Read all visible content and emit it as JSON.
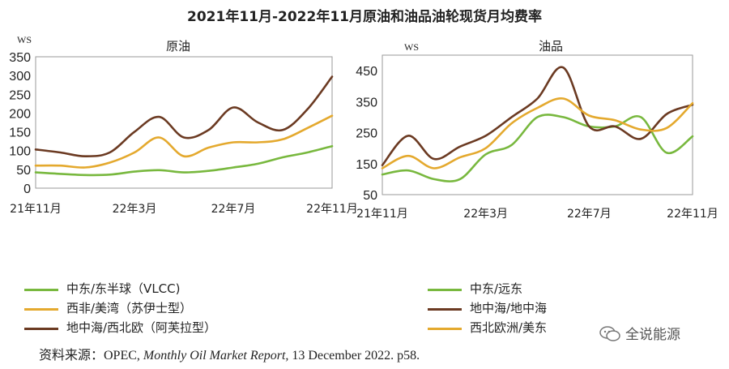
{
  "title": "2021年11月-2022年11月原油和油品油轮现货月均费率",
  "colors": {
    "green": "#78b83e",
    "yellow": "#e4a92e",
    "brown": "#6b3a22"
  },
  "legend_left": [
    {
      "label": "中东/东半球（VLCC)",
      "color": "#78b83e"
    },
    {
      "label": "西非/美湾（苏伊士型）",
      "color": "#e4a92e"
    },
    {
      "label": "地中海/西北欧（阿芙拉型）",
      "color": "#6b3a22"
    }
  ],
  "legend_right": [
    {
      "label": "中东/远东",
      "color": "#78b83e"
    },
    {
      "label": "地中海/地中海",
      "color": "#6b3a22"
    },
    {
      "label": "西北欧洲/美东",
      "color": "#e4a92e"
    }
  ],
  "source": {
    "prefix": "资料来源：OPEC, ",
    "italic": "Monthly Oil Market Report,",
    "suffix": " 13 December 2022. p58."
  },
  "brand": "全说能源",
  "chart_data": [
    {
      "type": "line",
      "subtitle": "原油",
      "unit_label": "WS",
      "x_tick_labels": [
        "21年11月",
        "22年3月",
        "22年7月",
        "22年11月"
      ],
      "x_tick_positions": [
        0,
        4,
        8,
        12
      ],
      "ylim": [
        0,
        350
      ],
      "yticks": [
        0,
        50,
        100,
        150,
        200,
        250,
        300,
        350
      ],
      "grid": false,
      "series": [
        {
          "name": "中东/东半球（VLCC)",
          "color": "#78b83e",
          "x": [
            0,
            1,
            2,
            3,
            4,
            5,
            6,
            7,
            8,
            9,
            10,
            11,
            12
          ],
          "values": [
            42,
            38,
            35,
            36,
            44,
            48,
            42,
            46,
            55,
            65,
            82,
            95,
            112
          ]
        },
        {
          "name": "西非/美湾（苏伊士型）",
          "color": "#e4a92e",
          "x": [
            0,
            1,
            2,
            3,
            4,
            5,
            6,
            7,
            8,
            9,
            10,
            11,
            12
          ],
          "values": [
            60,
            60,
            55,
            68,
            95,
            135,
            85,
            108,
            122,
            122,
            130,
            160,
            193
          ]
        },
        {
          "name": "地中海/西北欧（阿芙拉型）",
          "color": "#6b3a22",
          "x": [
            0,
            1,
            2,
            3,
            4,
            5,
            6,
            7,
            8,
            9,
            10,
            11,
            12
          ],
          "values": [
            103,
            95,
            85,
            95,
            150,
            190,
            135,
            155,
            215,
            175,
            155,
            210,
            297
          ]
        }
      ]
    },
    {
      "type": "line",
      "subtitle": "油品",
      "unit_label": "WS",
      "x_tick_labels": [
        "21年11月",
        "22年3月",
        "22年7月",
        "22年11月"
      ],
      "x_tick_positions": [
        0,
        4,
        8,
        12
      ],
      "ylim": [
        50,
        500
      ],
      "yticks": [
        50,
        150,
        250,
        350,
        450
      ],
      "grid": false,
      "series": [
        {
          "name": "中东/远东",
          "color": "#78b83e",
          "x": [
            0,
            1,
            2,
            3,
            4,
            5,
            6,
            7,
            8,
            9,
            10,
            11,
            12
          ],
          "values": [
            115,
            128,
            100,
            100,
            180,
            210,
            300,
            300,
            270,
            270,
            300,
            185,
            238
          ]
        },
        {
          "name": "地中海/地中海",
          "color": "#6b3a22",
          "x": [
            0,
            1,
            2,
            3,
            4,
            5,
            6,
            7,
            8,
            9,
            10,
            11,
            12
          ],
          "values": [
            145,
            240,
            165,
            205,
            240,
            300,
            360,
            460,
            270,
            270,
            230,
            310,
            340
          ]
        },
        {
          "name": "西北欧洲/美东",
          "color": "#e4a92e",
          "x": [
            0,
            1,
            2,
            3,
            4,
            5,
            6,
            7,
            8,
            9,
            10,
            11,
            12
          ],
          "values": [
            135,
            175,
            135,
            170,
            200,
            280,
            330,
            360,
            305,
            290,
            260,
            265,
            345
          ]
        }
      ]
    }
  ]
}
